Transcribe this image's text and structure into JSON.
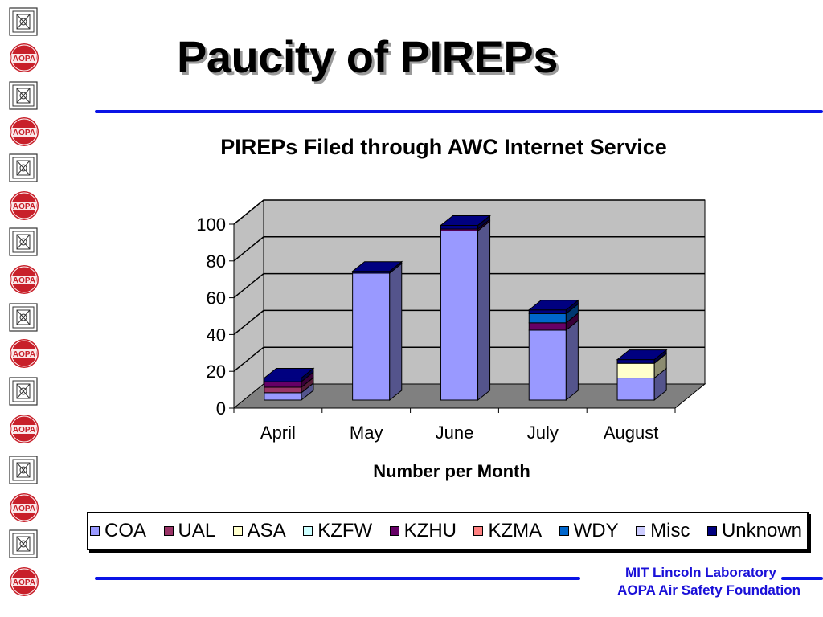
{
  "slide": {
    "title": "Paucity of PIREPs"
  },
  "footer": {
    "line1": "MIT Lincoln Laboratory",
    "line2": "AOPA Air Safety Foundation"
  },
  "sidebar": {
    "logo_text": "AOPA"
  },
  "colors": {
    "accent_line": "#0a14e6",
    "footer_text": "#1a10d8",
    "aopa_red": "#c8202a"
  },
  "chart_data": {
    "type": "bar",
    "stacked": true,
    "three_d": true,
    "title": "PIREPs Filed through AWC Internet Service",
    "xlabel": "Number per Month",
    "ylabel": "",
    "categories": [
      "April",
      "May",
      "June",
      "July",
      "August"
    ],
    "ylim": [
      0,
      100
    ],
    "yticks": [
      0,
      20,
      40,
      60,
      80,
      100
    ],
    "grid": true,
    "legend_position": "bottom",
    "series": [
      {
        "name": "COA",
        "color": "#9999ff",
        "values": [
          4,
          69,
          92,
          38,
          12
        ]
      },
      {
        "name": "UAL",
        "color": "#993366",
        "values": [
          3,
          0,
          0,
          0,
          0
        ]
      },
      {
        "name": "ASA",
        "color": "#ffffcc",
        "values": [
          0,
          0,
          0,
          0,
          8
        ]
      },
      {
        "name": "KZFW",
        "color": "#ccffff",
        "values": [
          0,
          0,
          0,
          0,
          0
        ]
      },
      {
        "name": "KZHU",
        "color": "#660066",
        "values": [
          3,
          0,
          1,
          4,
          0
        ]
      },
      {
        "name": "KZMA",
        "color": "#ff8080",
        "values": [
          0,
          0,
          0,
          0,
          0
        ]
      },
      {
        "name": "WDY",
        "color": "#0066cc",
        "values": [
          0,
          0,
          0,
          5,
          0
        ]
      },
      {
        "name": "Misc",
        "color": "#ccccff",
        "values": [
          0,
          0,
          0,
          0,
          0
        ]
      },
      {
        "name": "Unknown",
        "color": "#000080",
        "values": [
          2,
          1,
          2,
          2,
          2
        ]
      }
    ]
  }
}
